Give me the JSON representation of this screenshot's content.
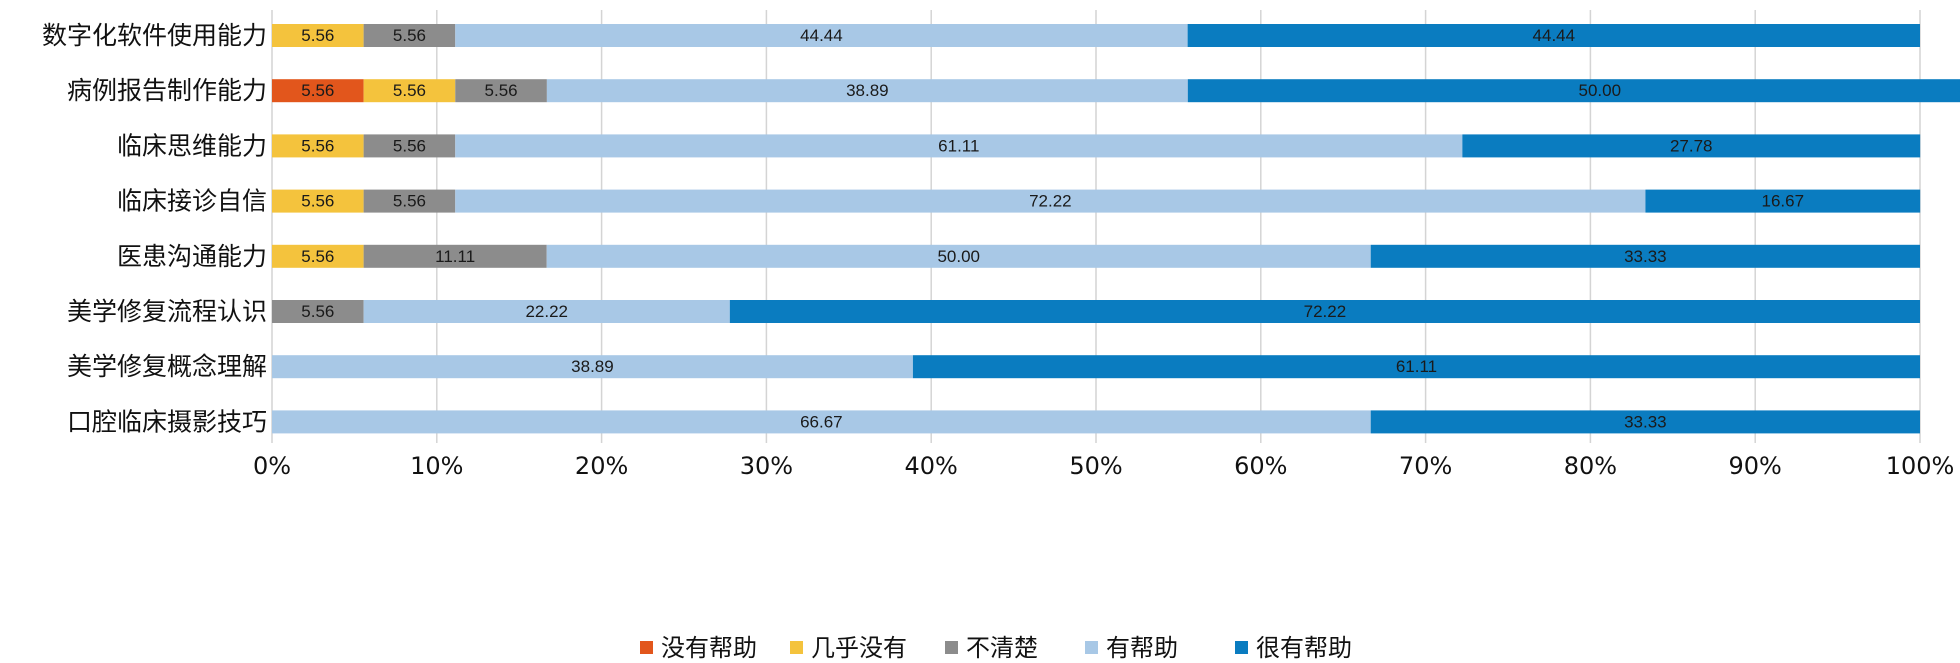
{
  "chart_data": {
    "type": "bar",
    "orientation": "horizontal",
    "stacked": true,
    "normalized": true,
    "title": "",
    "xlabel": "",
    "ylabel": "",
    "xlim": [
      0,
      100
    ],
    "x_tick_labels": [
      "0%",
      "10%",
      "20%",
      "30%",
      "40%",
      "50%",
      "60%",
      "70%",
      "80%",
      "90%",
      "100%"
    ],
    "grid": "vertical",
    "legend_position": "bottom",
    "categories": [
      "数字化软件使用能力",
      "病例报告制作能力",
      "临床思维能力",
      "临床接诊自信",
      "医患沟通能力",
      "美学修复流程认识",
      "美学修复概念理解",
      "口腔临床摄影技巧"
    ],
    "series": [
      {
        "name": "没有帮助",
        "color": "#e2561c",
        "values": [
          0,
          5.56,
          0,
          0,
          0,
          0,
          0,
          0
        ],
        "labels": [
          "",
          "5.56",
          "",
          "",
          "",
          "",
          "",
          ""
        ]
      },
      {
        "name": "几乎没有",
        "color": "#f4c33d",
        "values": [
          5.56,
          5.56,
          5.56,
          5.56,
          5.56,
          0,
          0,
          0
        ],
        "labels": [
          "5.56",
          "5.56",
          "5.56",
          "5.56",
          "5.56",
          "",
          "",
          ""
        ]
      },
      {
        "name": "不清楚",
        "color": "#8c8c8c",
        "values": [
          5.56,
          5.56,
          5.56,
          5.56,
          11.11,
          5.56,
          0,
          0
        ],
        "labels": [
          "5.56",
          "5.56",
          "5.56",
          "5.56",
          "11.11",
          "5.56",
          "",
          ""
        ]
      },
      {
        "name": "有帮助",
        "color": "#a8c8e6",
        "values": [
          44.44,
          38.89,
          61.11,
          72.22,
          50.0,
          22.22,
          38.89,
          66.67
        ],
        "labels": [
          "44.44",
          "38.89",
          "61.11",
          "72.22",
          "50.00",
          "22.22",
          "38.89",
          "66.67"
        ]
      },
      {
        "name": "很有帮助",
        "color": "#0a7cc0",
        "values": [
          44.44,
          50.0,
          27.78,
          16.67,
          33.33,
          72.22,
          61.11,
          33.33
        ],
        "labels": [
          "44.44",
          "50.00",
          "27.78",
          "16.67",
          "33.33",
          "72.22",
          "61.11",
          "33.33"
        ]
      }
    ],
    "colors": {
      "grid": "#d4d4d4",
      "text": "#111111"
    }
  }
}
